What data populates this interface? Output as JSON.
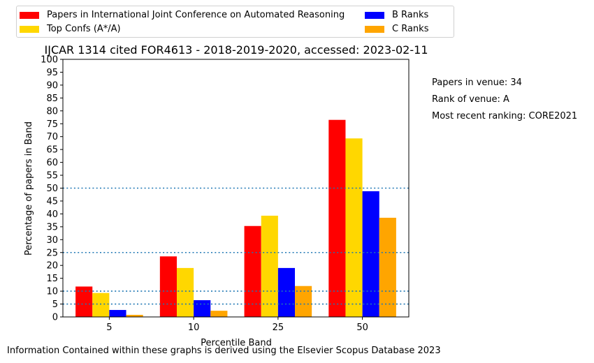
{
  "chart_data": {
    "type": "bar",
    "title": "IJCAR 1314 cited FOR4613 - 2018-2019-2020, accessed: 2023-02-11",
    "xlabel": "Percentile Band",
    "ylabel": "Percentage of papers in Band",
    "categories": [
      "5",
      "10",
      "25",
      "50"
    ],
    "ylim": [
      0,
      100
    ],
    "yticks": [
      0,
      5,
      10,
      15,
      20,
      25,
      30,
      35,
      40,
      45,
      50,
      55,
      60,
      65,
      70,
      75,
      80,
      85,
      90,
      95,
      100
    ],
    "reference_lines": [
      5,
      10,
      25,
      50
    ],
    "reference_line_color": "#1f77b4",
    "series": [
      {
        "name": "Papers in International Joint Conference on Automated Reasoning",
        "color": "#ff0000",
        "values": [
          11.8,
          23.5,
          35.3,
          76.5
        ]
      },
      {
        "name": "Top Confs (A*/A)",
        "color": "#ffd700",
        "values": [
          9.3,
          19.0,
          39.3,
          69.3
        ]
      },
      {
        "name": "B Ranks",
        "color": "#0000ff",
        "values": [
          2.7,
          6.5,
          19.0,
          48.8
        ]
      },
      {
        "name": "C Ranks",
        "color": "#ffa500",
        "values": [
          0.8,
          2.4,
          12.0,
          38.5
        ]
      }
    ],
    "legend_position": "top-left"
  },
  "legend": {
    "items": [
      {
        "label": "Papers in International Joint Conference on Automated Reasoning",
        "color": "#ff0000"
      },
      {
        "label": "B Ranks",
        "color": "#0000ff"
      },
      {
        "label": "Top Confs (A*/A)",
        "color": "#ffd700"
      },
      {
        "label": "C Ranks",
        "color": "#ffa500"
      }
    ]
  },
  "side_info": {
    "papers_in_venue": "Papers in venue: 34",
    "rank_of_venue": "Rank of venue: A",
    "recent_ranking": "Most recent ranking: CORE2021"
  },
  "footer": "Information Contained within these graphs is derived using the Elsevier Scopus Database 2023"
}
